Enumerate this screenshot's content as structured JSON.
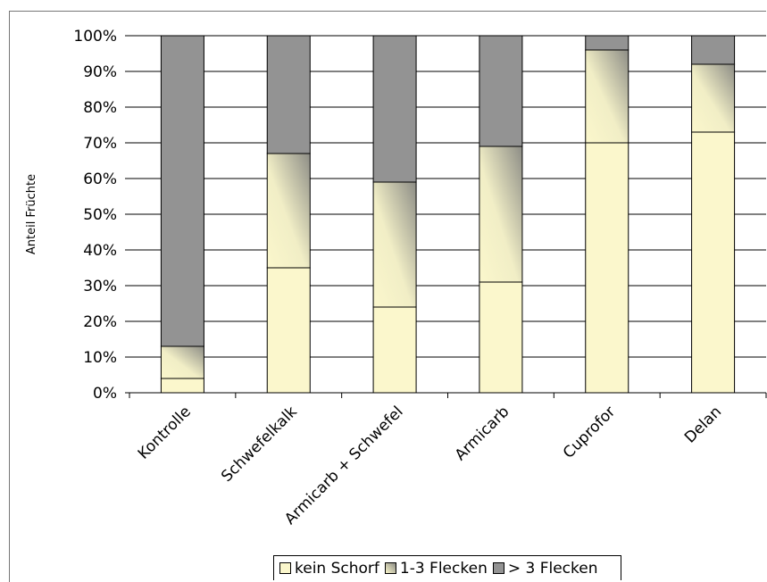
{
  "chart_data": {
    "type": "bar",
    "stacked": true,
    "percent_stacked": true,
    "categories": [
      "Kontrolle",
      "Schwefelkalk",
      "Armicarb + Schwefel",
      "Armicarb",
      "Cuprofor",
      "Delan"
    ],
    "series": [
      {
        "name": "kein Schorf",
        "values": [
          4,
          35,
          24,
          31,
          70,
          73
        ]
      },
      {
        "name": "1-3 Flecken",
        "values": [
          9,
          32,
          35,
          38,
          26,
          19
        ]
      },
      {
        "name": "> 3 Flecken",
        "values": [
          87,
          33,
          41,
          31,
          4,
          8
        ]
      }
    ],
    "title": "",
    "xlabel": "",
    "ylabel": "Anteil Früchte",
    "ylim": [
      0,
      100
    ],
    "yticks": [
      "0%",
      "10%",
      "20%",
      "30%",
      "40%",
      "50%",
      "60%",
      "70%",
      "80%",
      "90%",
      "100%"
    ],
    "grid": true,
    "legend_position": "bottom",
    "colors": {
      "kein Schorf": "#fbf7cc",
      "1-3 Flecken_light": "#f7f3c9",
      "1-3 Flecken_dark": "#8a8a80",
      "> 3 Flecken": "#939393",
      "grid": "#000000"
    }
  }
}
